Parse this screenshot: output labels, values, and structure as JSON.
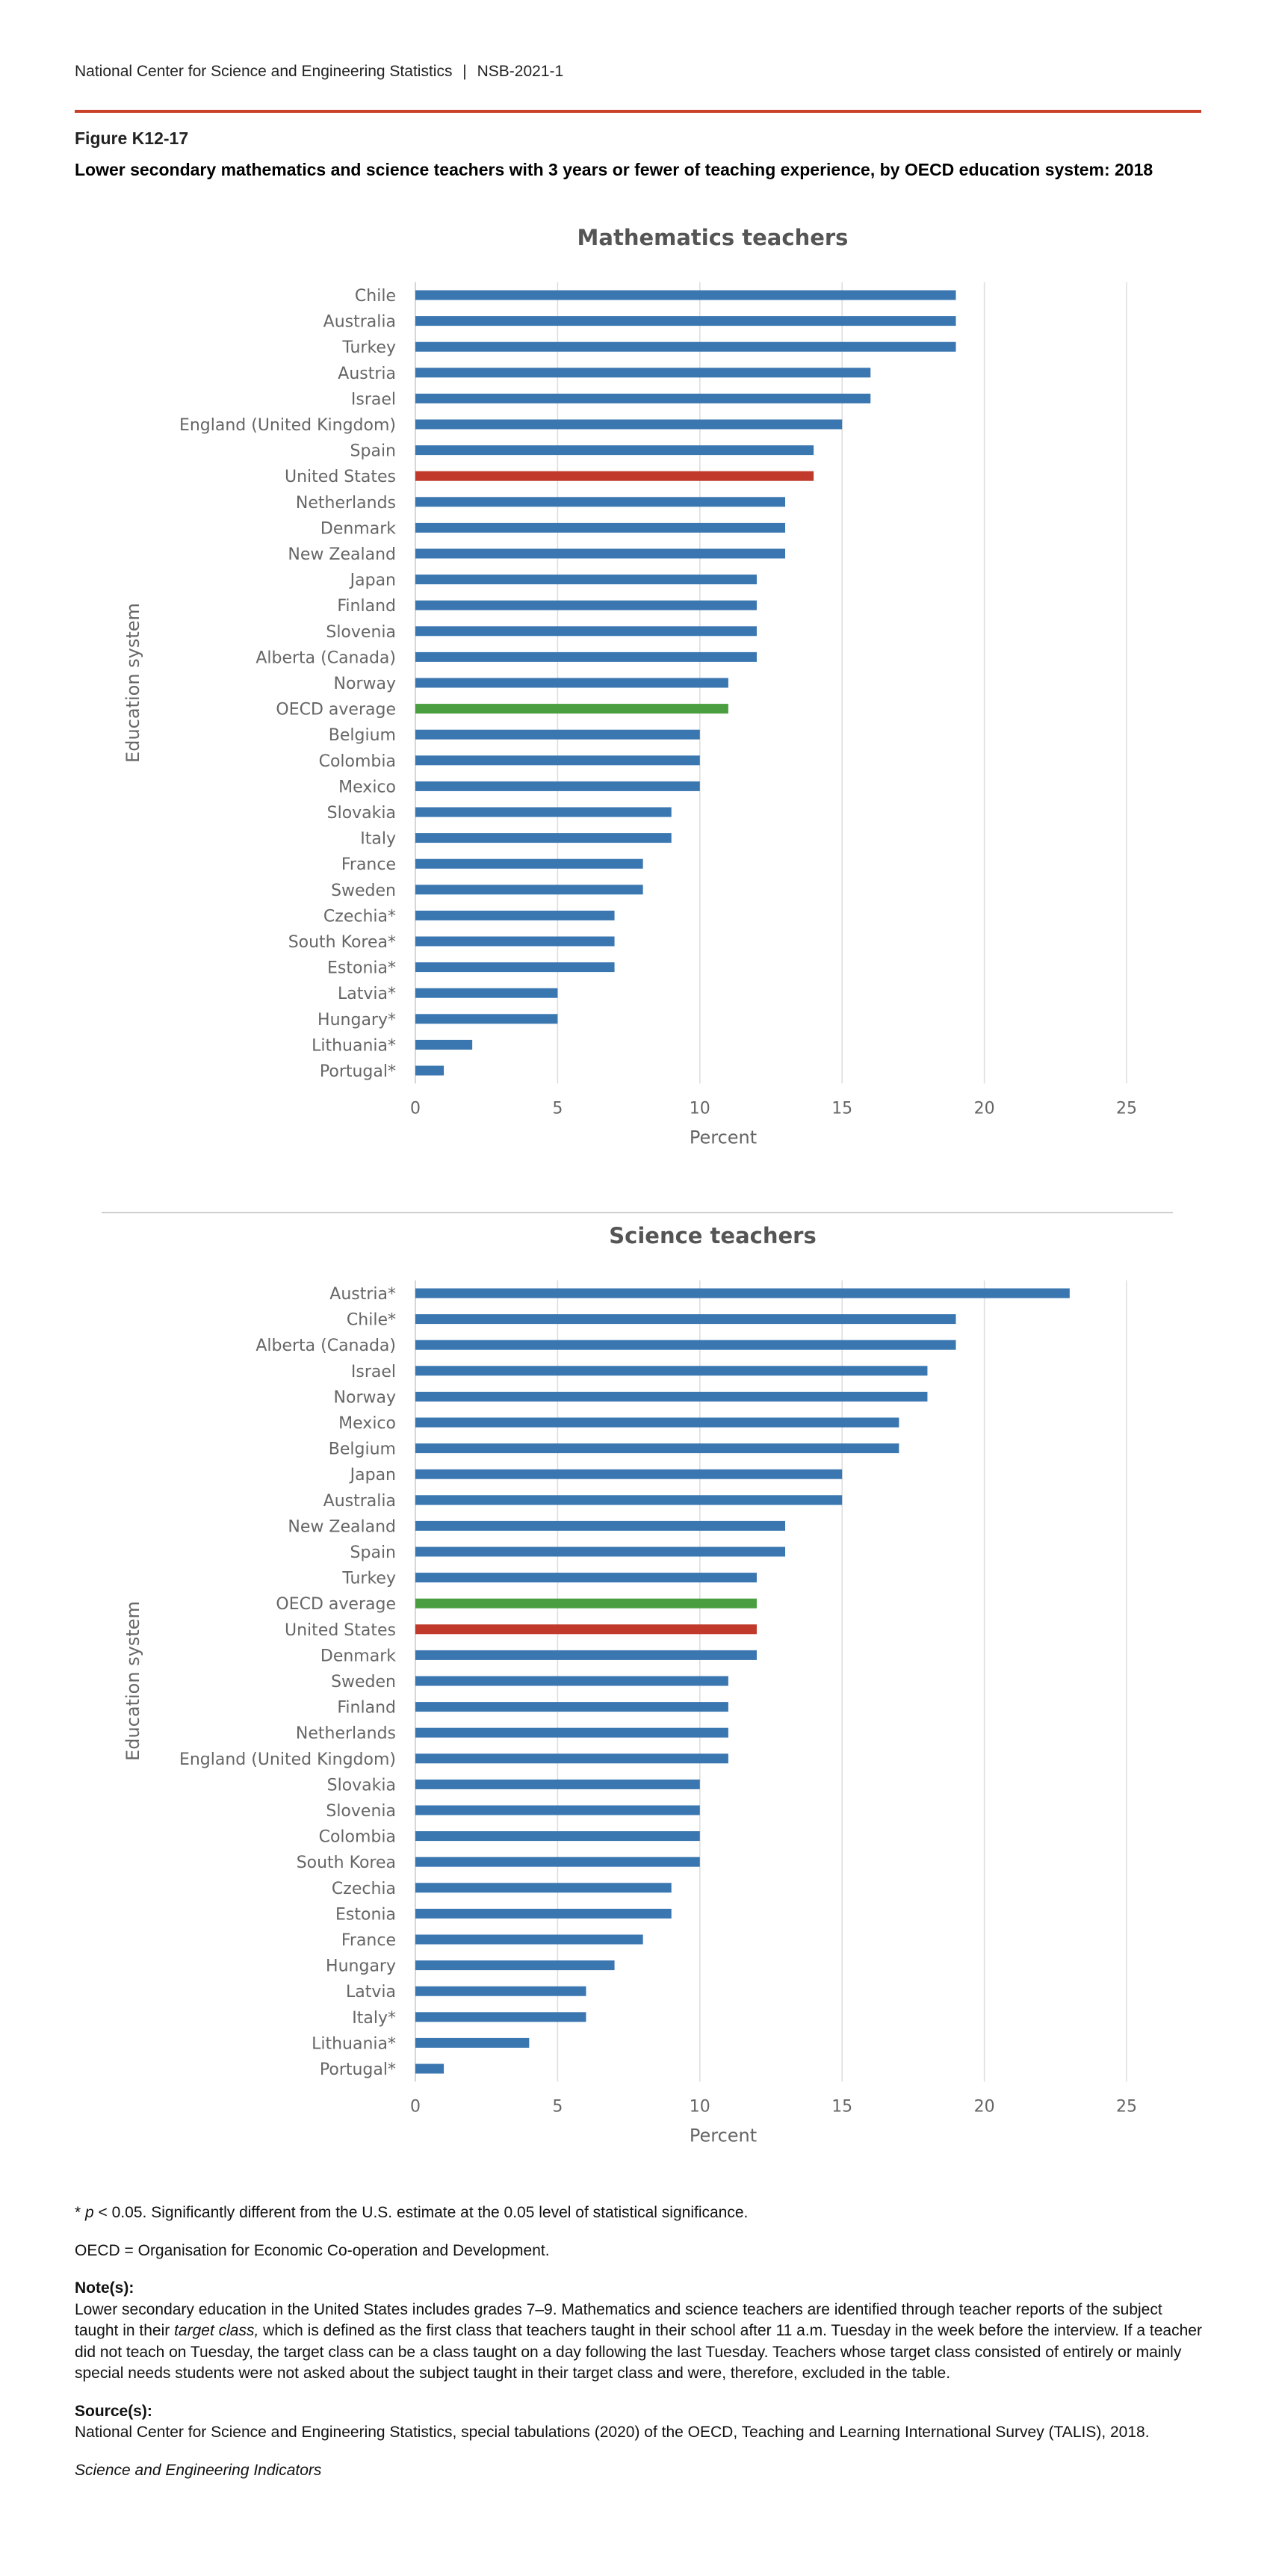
{
  "header": {
    "org": "National Center for Science and Engineering Statistics",
    "separator": "|",
    "report_id": "NSB-2021-1"
  },
  "figure": {
    "id": "Figure K12-17",
    "title": "Lower secondary mathematics and science teachers with 3 years or fewer of teaching experience, by OECD education system: 2018"
  },
  "colors": {
    "default_bar": "#3a76b0",
    "us_bar": "#c0392b",
    "oecd_bar": "#4a9e3f",
    "gridline": "#dddddd",
    "axis_text": "#666666",
    "title_text": "#555555"
  },
  "chart_data": [
    {
      "type": "bar",
      "orientation": "horizontal",
      "title": "Mathematics teachers",
      "xlabel": "Percent",
      "ylabel": "Education system",
      "xlim": [
        0,
        25
      ],
      "xticks": [
        0,
        5,
        10,
        15,
        20,
        25
      ],
      "grid": true,
      "categories": [
        "Chile",
        "Australia",
        "Turkey",
        "Austria",
        "Israel",
        "England (United Kingdom)",
        "Spain",
        "United States",
        "Netherlands",
        "Denmark",
        "New Zealand",
        "Japan",
        "Finland",
        "Slovenia",
        "Alberta (Canada)",
        "Norway",
        "OECD average",
        "Belgium",
        "Colombia",
        "Mexico",
        "Slovakia",
        "Italy",
        "France",
        "Sweden",
        "Czechia*",
        "South Korea*",
        "Estonia*",
        "Latvia*",
        "Hungary*",
        "Lithuania*",
        "Portugal*"
      ],
      "values": [
        19,
        19,
        19,
        16,
        16,
        15,
        14,
        14,
        13,
        13,
        13,
        12,
        12,
        12,
        12,
        11,
        11,
        10,
        10,
        10,
        9,
        9,
        8,
        8,
        7,
        7,
        7,
        5,
        5,
        2,
        1
      ],
      "highlight": {
        "United States": "us",
        "OECD average": "oecd"
      }
    },
    {
      "type": "bar",
      "orientation": "horizontal",
      "title": "Science teachers",
      "xlabel": "Percent",
      "ylabel": "Education system",
      "xlim": [
        0,
        25
      ],
      "xticks": [
        0,
        5,
        10,
        15,
        20,
        25
      ],
      "grid": true,
      "categories": [
        "Austria*",
        "Chile*",
        "Alberta (Canada)",
        "Israel",
        "Norway",
        "Mexico",
        "Belgium",
        "Japan",
        "Australia",
        "New Zealand",
        "Spain",
        "Turkey",
        "OECD average",
        "United States",
        "Denmark",
        "Sweden",
        "Finland",
        "Netherlands",
        "England (United Kingdom)",
        "Slovakia",
        "Slovenia",
        "Colombia",
        "South Korea",
        "Czechia",
        "Estonia",
        "France",
        "Hungary",
        "Latvia",
        "Italy*",
        "Lithuania*",
        "Portugal*"
      ],
      "values": [
        23,
        19,
        19,
        18,
        18,
        17,
        17,
        15,
        15,
        13,
        13,
        12,
        12,
        12,
        12,
        11,
        11,
        11,
        11,
        10,
        10,
        10,
        10,
        9,
        9,
        8,
        7,
        6,
        6,
        4,
        1
      ],
      "highlight": {
        "United States": "us",
        "OECD average": "oecd"
      }
    }
  ],
  "footer": {
    "sig_star": "*",
    "sig_p": "p",
    "sig_text": " < 0.05. Significantly different from the U.S. estimate at the 0.05 level of statistical significance.",
    "oecd_def": "OECD = Organisation for Economic Co-operation and Development.",
    "note_label": "Note(s):",
    "note_part1": "Lower secondary education in the United States includes grades 7–9. Mathematics and science teachers are identified through teacher reports of the subject taught in their ",
    "note_italic": "target class,",
    "note_part2": " which is defined as the first class that teachers taught in their school after 11 a.m. Tuesday in the week before the interview. If a teacher did not teach on Tuesday, the target class can be a class taught on a day following the last Tuesday. Teachers whose target class consisted of entirely or mainly special needs students were not asked about the subject taught in their target class and were, therefore, excluded in the table.",
    "source_label": "Source(s):",
    "source_text": "National Center for Science and Engineering Statistics, special tabulations (2020) of the OECD, Teaching and Learning International Survey (TALIS), 2018.",
    "brand": "Science and Engineering Indicators"
  }
}
